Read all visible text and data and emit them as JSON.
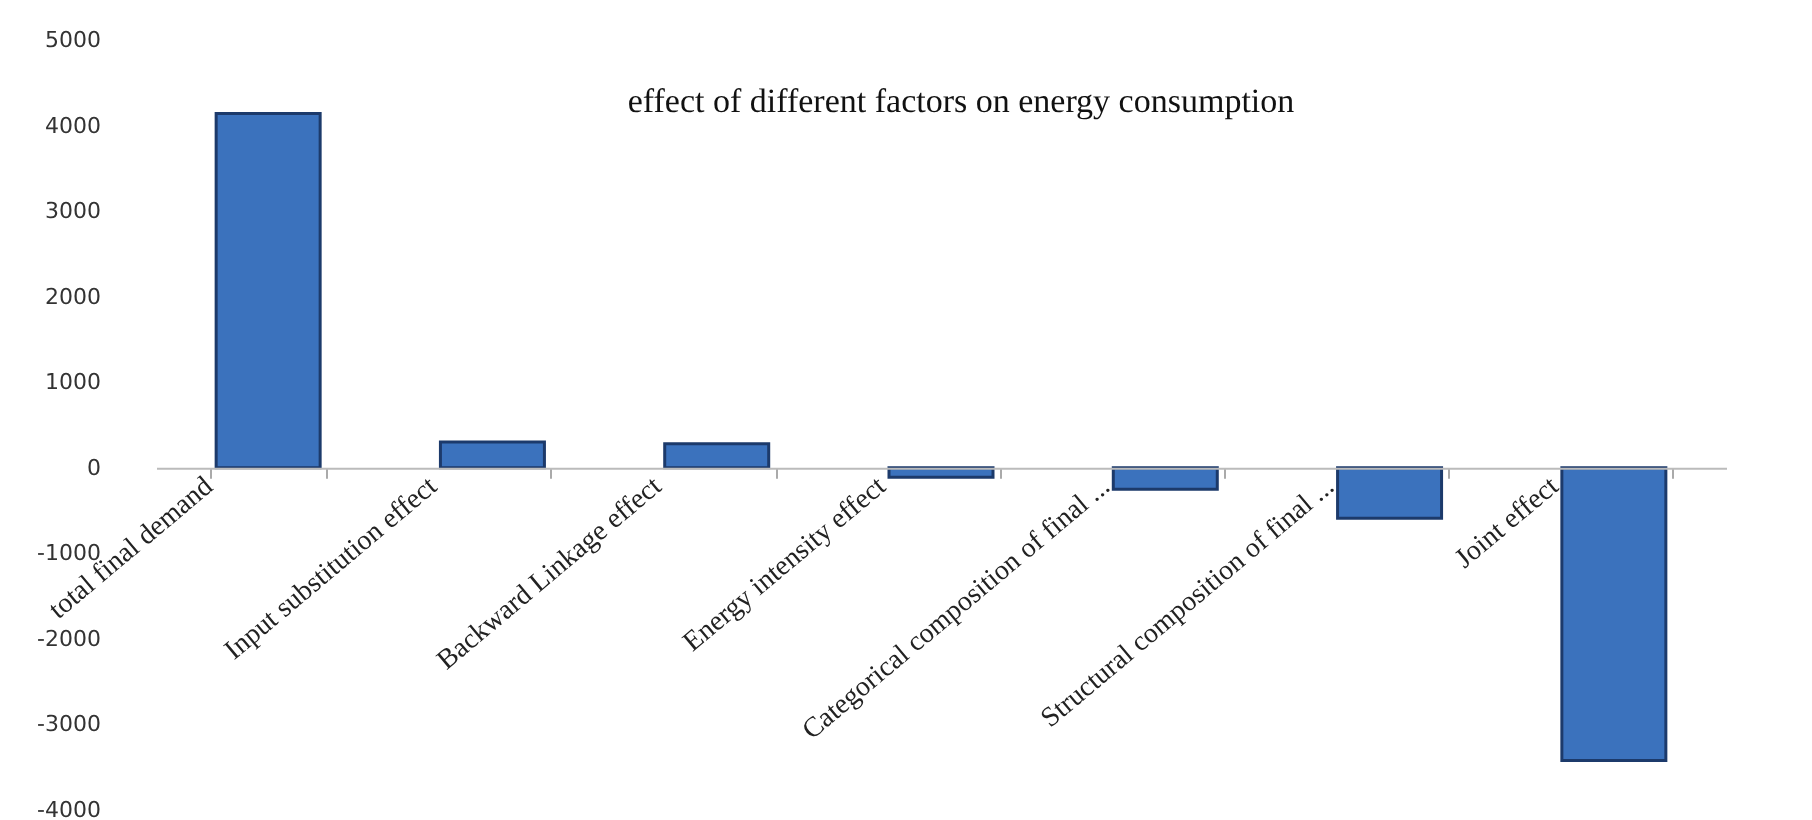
{
  "chart_data": {
    "type": "bar",
    "title": "effect of different factors on energy consumption",
    "categories": [
      "total final demand",
      "Input substitution effect",
      "Backward Linkage effect",
      "Energy intensity effect",
      "Categorical composition of final ...",
      "Structural composition of final ...",
      "Joint effect"
    ],
    "values": [
      4140,
      300,
      280,
      -110,
      -250,
      -590,
      -3420
    ],
    "color": "#3b72bd",
    "ylim": [
      -4000,
      5000
    ],
    "yticks": [
      -4000,
      -3000,
      -2000,
      -1000,
      0,
      1000,
      2000,
      3000,
      4000,
      5000
    ]
  }
}
